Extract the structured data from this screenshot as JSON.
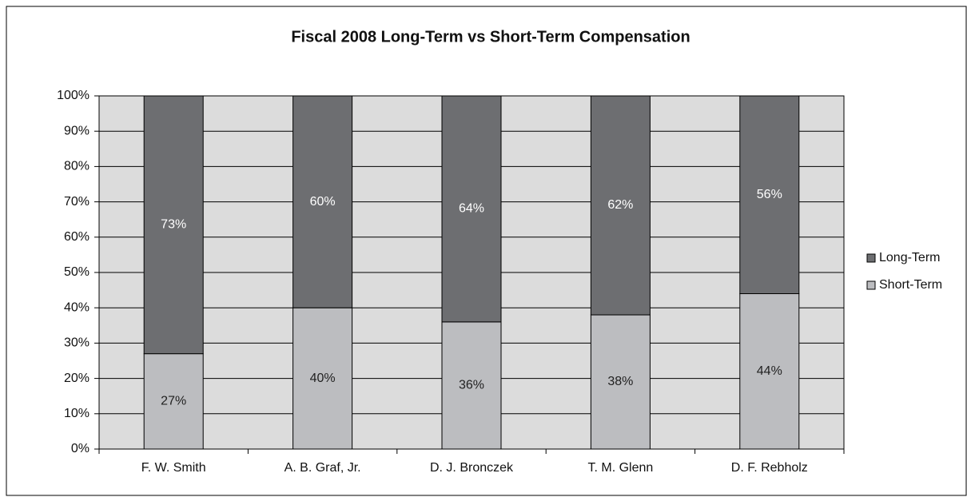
{
  "chart_data": {
    "type": "stacked_bar",
    "title": "Fiscal 2008 Long-Term vs Short-Term Compensation",
    "categories": [
      "F. W. Smith",
      "A. B. Graf, Jr.",
      "D. J. Bronczek",
      "T. M. Glenn",
      "D. F. Rebholz"
    ],
    "series": [
      {
        "name": "Long-Term",
        "color": "#6d6e71",
        "values": [
          73,
          60,
          64,
          62,
          56
        ],
        "value_labels": [
          "73%",
          "60%",
          "64%",
          "62%",
          "56%"
        ]
      },
      {
        "name": "Short-Term",
        "color": "#bcbdc0",
        "values": [
          27,
          40,
          36,
          38,
          44
        ],
        "value_labels": [
          "27%",
          "40%",
          "36%",
          "38%",
          "44%"
        ]
      }
    ],
    "ylim": [
      0,
      100
    ],
    "yticks": [
      {
        "value": 0,
        "label": "0%"
      },
      {
        "value": 10,
        "label": "10%"
      },
      {
        "value": 20,
        "label": "20%"
      },
      {
        "value": 30,
        "label": "30%"
      },
      {
        "value": 40,
        "label": "40%"
      },
      {
        "value": 50,
        "label": "50%"
      },
      {
        "value": 60,
        "label": "60%"
      },
      {
        "value": 70,
        "label": "70%"
      },
      {
        "value": 80,
        "label": "80%"
      },
      {
        "value": 90,
        "label": "90%"
      },
      {
        "value": 100,
        "label": "100%"
      }
    ],
    "grid": true,
    "legend": "right"
  }
}
